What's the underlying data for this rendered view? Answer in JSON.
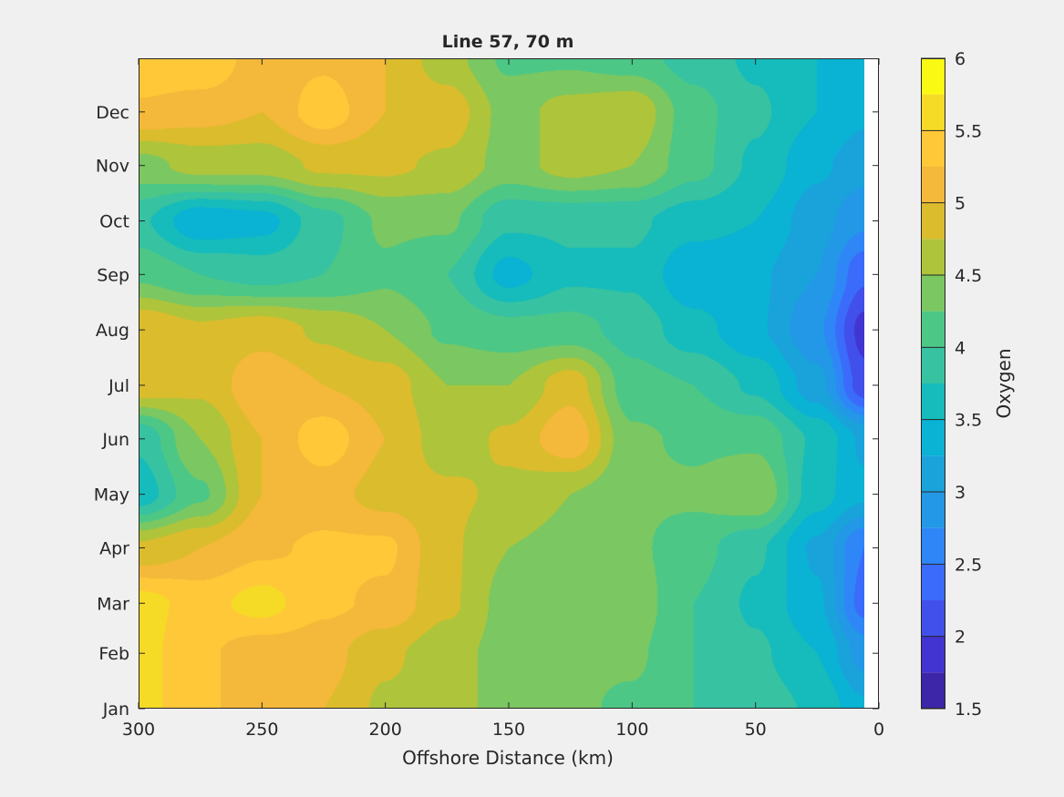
{
  "chart_data": {
    "type": "heatmap",
    "subtype": "filled-contour",
    "title": "Line 57, 70 m",
    "xlabel": "Offshore Distance (km)",
    "ylabel": "",
    "x_reversed": true,
    "xlim": [
      300,
      0
    ],
    "x_ticks": [
      300,
      250,
      200,
      150,
      100,
      50,
      0
    ],
    "x_tick_labels": [
      "300",
      "250",
      "200",
      "150",
      "100",
      "50",
      "0"
    ],
    "data_extent_x": [
      300,
      6
    ],
    "y_tick_labels": [
      "Jan",
      "Feb",
      "Mar",
      "Apr",
      "May",
      "Jun",
      "Jul",
      "Aug",
      "Sep",
      "Oct",
      "Nov",
      "Dec"
    ],
    "y_tick_days": [
      1,
      32,
      60,
      91,
      121,
      152,
      182,
      213,
      244,
      274,
      305,
      335
    ],
    "ylim_days": [
      1,
      365
    ],
    "colorbar": {
      "label": "Oxygen",
      "levels": [
        1.5,
        1.75,
        2.0,
        2.25,
        2.5,
        2.75,
        3.0,
        3.25,
        3.5,
        3.75,
        4.0,
        4.25,
        4.5,
        4.75,
        5.0,
        5.25,
        5.5,
        5.75,
        6.0
      ],
      "colors": [
        "#3e26a8",
        "#4234d0",
        "#4150ea",
        "#3b6bfa",
        "#2f86f7",
        "#2298e6",
        "#1aa3db",
        "#0ab2d3",
        "#16bbbb",
        "#37c2a2",
        "#4dc786",
        "#7bc761",
        "#aec43b",
        "#dbbc2c",
        "#f4b83a",
        "#fec838",
        "#f6db26",
        "#f9f914"
      ],
      "tick_values": [
        1.5,
        2,
        2.5,
        3,
        3.5,
        4,
        4.5,
        5,
        5.5,
        6
      ],
      "tick_labels": [
        "1.5",
        "2",
        "2.5",
        "3",
        "3.5",
        "4",
        "4.5",
        "5",
        "5.5",
        "6"
      ]
    },
    "grid_x": [
      300,
      275,
      250,
      225,
      200,
      175,
      150,
      125,
      100,
      75,
      50,
      25,
      6
    ],
    "grid_y_days": [
      1,
      32,
      60,
      91,
      121,
      152,
      182,
      213,
      244,
      274,
      305,
      335,
      365
    ],
    "values": [
      [
        5.6,
        5.3,
        5.1,
        5.0,
        4.7,
        4.6,
        4.4,
        4.3,
        4.2,
        4.0,
        3.9,
        3.7,
        3.3
      ],
      [
        5.6,
        5.3,
        5.1,
        5.1,
        4.8,
        4.6,
        4.4,
        4.3,
        4.3,
        4.0,
        3.8,
        3.5,
        2.9
      ],
      [
        5.6,
        5.4,
        5.6,
        5.3,
        5.2,
        4.8,
        4.4,
        4.4,
        4.4,
        4.0,
        3.7,
        3.3,
        2.4
      ],
      [
        4.8,
        5.0,
        5.2,
        5.3,
        5.3,
        4.8,
        4.5,
        4.4,
        4.3,
        4.1,
        3.8,
        3.2,
        2.5
      ],
      [
        3.6,
        4.2,
        5.0,
        5.1,
        4.9,
        4.8,
        4.7,
        4.5,
        4.3,
        4.3,
        4.5,
        3.6,
        3.3
      ],
      [
        3.8,
        4.5,
        5.0,
        5.4,
        5.0,
        4.6,
        4.8,
        5.2,
        4.3,
        4.2,
        4.2,
        3.7,
        3.2
      ],
      [
        4.9,
        4.8,
        5.2,
        5.0,
        4.9,
        4.5,
        4.5,
        4.9,
        4.1,
        4.0,
        3.7,
        3.1,
        2.1
      ],
      [
        5.0,
        4.8,
        4.9,
        4.7,
        4.5,
        4.2,
        4.1,
        4.1,
        3.9,
        3.6,
        3.3,
        2.8,
        1.9
      ],
      [
        4.2,
        4.0,
        3.9,
        4.0,
        4.2,
        4.0,
        3.4,
        3.7,
        3.7,
        3.3,
        3.3,
        3.0,
        2.3
      ],
      [
        3.8,
        3.3,
        3.4,
        3.9,
        4.3,
        4.3,
        3.8,
        3.8,
        3.8,
        3.6,
        3.5,
        3.1,
        2.8
      ],
      [
        4.4,
        4.6,
        4.6,
        4.8,
        4.8,
        4.7,
        4.4,
        4.6,
        4.5,
        4.1,
        3.7,
        3.3,
        3.1
      ],
      [
        5.2,
        5.1,
        5.0,
        5.4,
        5.0,
        4.9,
        4.4,
        4.6,
        4.7,
        4.1,
        3.8,
        3.5,
        3.3
      ],
      [
        5.5,
        5.5,
        5.1,
        5.2,
        5.0,
        4.6,
        4.2,
        4.2,
        4.1,
        3.9,
        3.7,
        3.5,
        3.4
      ]
    ]
  }
}
